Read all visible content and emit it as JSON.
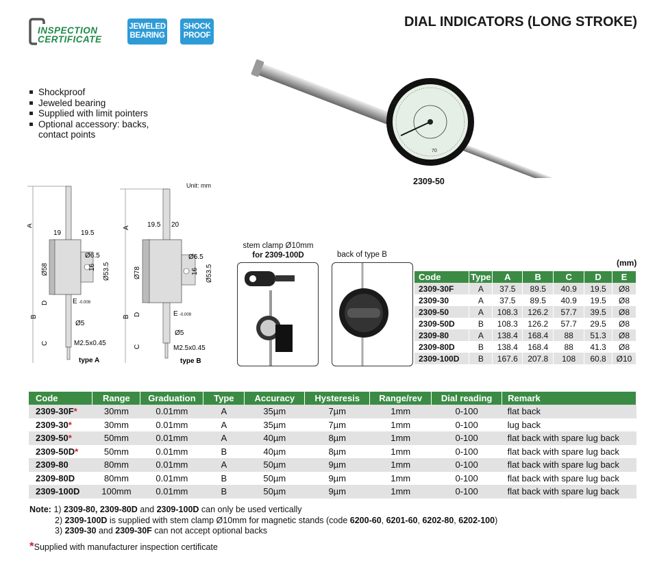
{
  "header": {
    "logo_text": [
      "INSPECTION",
      "CERTIFICATE"
    ],
    "badges": [
      {
        "line1": "JEWELED",
        "line2": "BEARING"
      },
      {
        "line1": "SHOCK",
        "line2": "PROOF"
      }
    ],
    "title": "DIAL INDICATORS (LONG STROKE)",
    "colors": {
      "badge": "#2e9bd6",
      "logo": "#1e8a48",
      "table_header": "#3b8b45",
      "star": "#d0202a"
    }
  },
  "features": [
    "Shockproof",
    "Jeweled bearing",
    "Supplied with limit pointers",
    "Optional accessory: backs,",
    "contact points"
  ],
  "product_photo": {
    "caption": "2309-50"
  },
  "diagrams": {
    "unit": "Unit: mm",
    "type_a": {
      "label": "type A",
      "A": "A",
      "B": "B",
      "C": "C",
      "D": "D",
      "d1": "19",
      "d2": "19.5",
      "dia_body": "Ø58",
      "dia_hole": "Ø6.5",
      "h16": "16",
      "dia_back": "Ø53.5",
      "E": "E",
      "tol": "-0.009",
      "stem": "Ø5",
      "thread": "M2.5x0.45"
    },
    "type_b": {
      "label": "type B",
      "A": "A",
      "B": "B",
      "C": "C",
      "D": "D",
      "d1": "19.5",
      "d2": "20",
      "dia_body": "Ø78",
      "dia_hole": "Ø6.5",
      "h16": "16",
      "dia_back": "Ø53.5",
      "E": "E",
      "tol": "-0.009",
      "stem": "Ø5",
      "thread": "M2.5x0.45"
    }
  },
  "accessories": {
    "clamp_label_1": "stem clamp Ø10mm",
    "clamp_label_2": "for 2309-100D",
    "back_label": "back of type B"
  },
  "dim_table": {
    "unit": "(mm)",
    "headers": [
      "Code",
      "Type",
      "A",
      "B",
      "C",
      "D",
      "E"
    ],
    "rows": [
      [
        "2309-30F",
        "A",
        "37.5",
        "89.5",
        "40.9",
        "19.5",
        "Ø8"
      ],
      [
        "2309-30",
        "A",
        "37.5",
        "89.5",
        "40.9",
        "19.5",
        "Ø8"
      ],
      [
        "2309-50",
        "A",
        "108.3",
        "126.2",
        "57.7",
        "39.5",
        "Ø8"
      ],
      [
        "2309-50D",
        "B",
        "108.3",
        "126.2",
        "57.7",
        "29.5",
        "Ø8"
      ],
      [
        "2309-80",
        "A",
        "138.4",
        "168.4",
        "88",
        "51.3",
        "Ø8"
      ],
      [
        "2309-80D",
        "B",
        "138.4",
        "168.4",
        "88",
        "41.3",
        "Ø8"
      ],
      [
        "2309-100D",
        "B",
        "167.6",
        "207.8",
        "108",
        "60.8",
        "Ø10"
      ]
    ]
  },
  "spec_table": {
    "headers": [
      "Code",
      "Range",
      "Graduation",
      "Type",
      "Accuracy",
      "Hysteresis",
      "Range/rev",
      "Dial reading",
      "Remark"
    ],
    "rows": [
      {
        "code": "2309-30F",
        "star": "*",
        "cells": [
          "30mm",
          "0.01mm",
          "A",
          "35µm",
          "7µm",
          "1mm",
          "0-100",
          "flat back"
        ]
      },
      {
        "code": "2309-30",
        "star": "*",
        "cells": [
          "30mm",
          "0.01mm",
          "A",
          "35µm",
          "7µm",
          "1mm",
          "0-100",
          "lug back"
        ]
      },
      {
        "code": "2309-50",
        "star": "*",
        "cells": [
          "50mm",
          "0.01mm",
          "A",
          "40µm",
          "8µm",
          "1mm",
          "0-100",
          "flat back with spare lug back"
        ]
      },
      {
        "code": "2309-50D",
        "star": "*",
        "cells": [
          "50mm",
          "0.01mm",
          "B",
          "40µm",
          "8µm",
          "1mm",
          "0-100",
          "flat back with spare lug back"
        ]
      },
      {
        "code": "2309-80",
        "star": "",
        "cells": [
          "80mm",
          "0.01mm",
          "A",
          "50µm",
          "9µm",
          "1mm",
          "0-100",
          "flat back with spare lug back"
        ]
      },
      {
        "code": "2309-80D",
        "star": "",
        "cells": [
          "80mm",
          "0.01mm",
          "B",
          "50µm",
          "9µm",
          "1mm",
          "0-100",
          "flat back with spare lug back"
        ]
      },
      {
        "code": "2309-100D",
        "star": "",
        "cells": [
          "100mm",
          "0.01mm",
          "B",
          "50µm",
          "9µm",
          "1mm",
          "0-100",
          "flat back with spare lug back"
        ]
      }
    ]
  },
  "notes": {
    "prefix": "Note:",
    "n1": [
      "1) ",
      "2309-80, 2309-80D",
      " and ",
      "2309-100D",
      " can only be used vertically"
    ],
    "n2": [
      "2) ",
      "2309-100D",
      " is supplied with stem clamp Ø10mm for magnetic stands (code ",
      "6200-60",
      ", ",
      "6201-60",
      ", ",
      "6202-80",
      ", ",
      "6202-100",
      ")"
    ],
    "n3": [
      "3) ",
      "2309-30",
      " and ",
      "2309-30F",
      " can not accept optional backs"
    ],
    "footnote_star": "*",
    "footnote": "Supplied with manufacturer inspection certificate"
  }
}
